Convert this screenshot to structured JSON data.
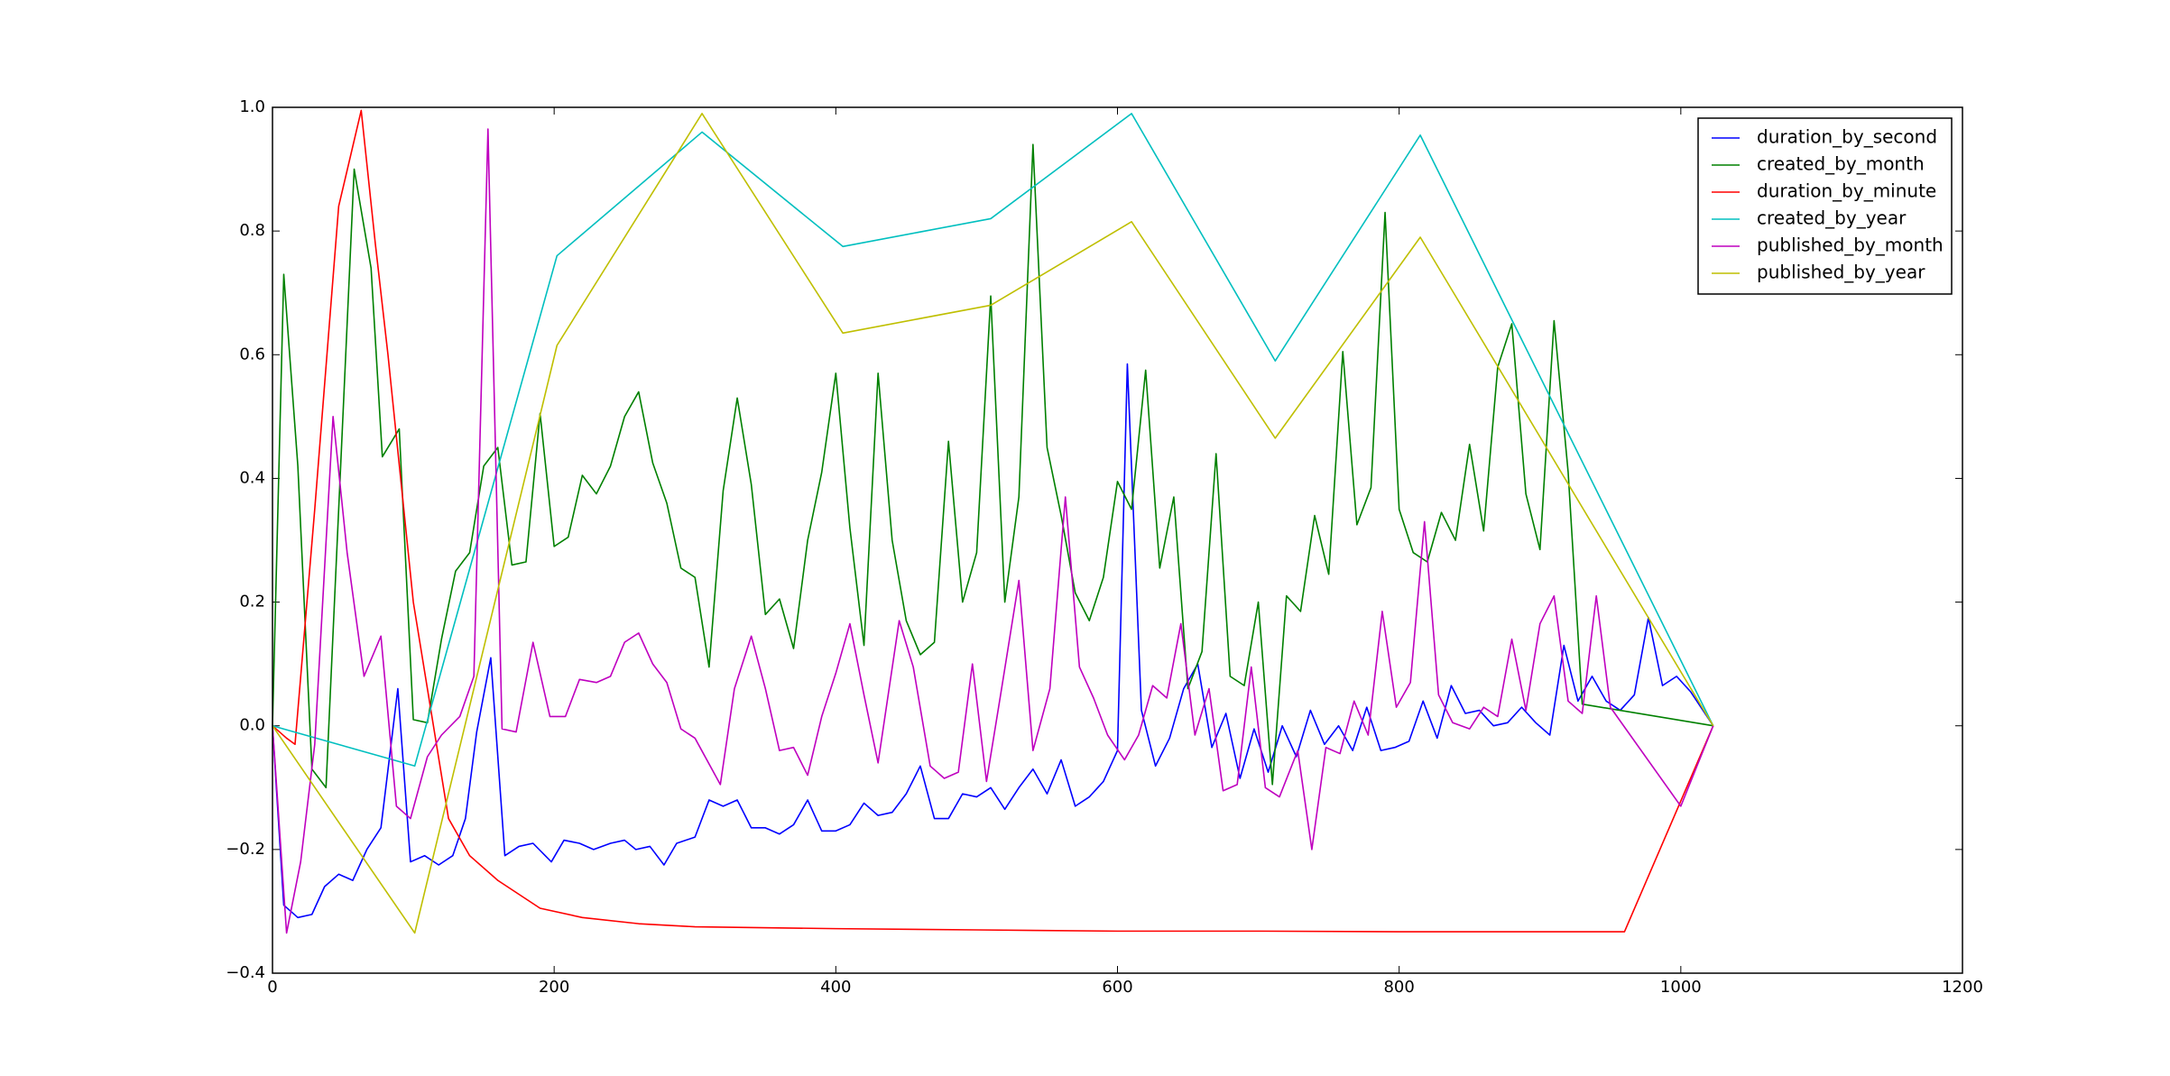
{
  "chart_data": {
    "type": "line",
    "xlim": [
      0,
      1200
    ],
    "xticks": [
      0,
      200,
      400,
      600,
      800,
      1000,
      1200
    ],
    "ylim": [
      -0.4,
      1.0
    ],
    "yticks": [
      {
        "value": -0.4,
        "label": "−0.4"
      },
      {
        "value": -0.2,
        "label": "−0.2"
      },
      {
        "value": 0,
        "label": "0.0"
      },
      {
        "value": 0.2,
        "label": "0.2"
      },
      {
        "value": 0.4,
        "label": "0.4"
      },
      {
        "value": 0.6,
        "label": "0.6"
      },
      {
        "value": 0.8,
        "label": "0.8"
      },
      {
        "value": 1.0,
        "label": "1.0"
      }
    ],
    "legend": "upper right",
    "series": [
      {
        "name": "duration_by_second",
        "color": "#0000ff",
        "x": [
          0,
          8,
          18,
          28,
          37,
          47,
          57,
          67,
          77,
          89,
          98,
          108,
          118,
          128,
          137,
          145,
          155,
          165,
          175,
          185,
          198,
          207,
          218,
          228,
          240,
          250,
          258,
          268,
          278,
          287,
          300,
          310,
          320,
          330,
          340,
          350,
          360,
          370,
          380,
          390,
          400,
          410,
          420,
          430,
          440,
          450,
          460,
          470,
          480,
          490,
          500,
          510,
          520,
          530,
          540,
          550,
          560,
          570,
          580,
          590,
          600,
          607,
          617,
          627,
          637,
          647,
          657,
          667,
          677,
          687,
          697,
          707,
          717,
          727,
          737,
          747,
          757,
          767,
          777,
          787,
          797,
          807,
          817,
          827,
          837,
          847,
          857,
          867,
          877,
          887,
          897,
          907,
          917,
          927,
          937,
          947,
          957,
          967,
          977,
          987,
          997,
          1007,
          1023
        ],
        "values": [
          0,
          -0.29,
          -0.31,
          -0.305,
          -0.26,
          -0.24,
          -0.25,
          -0.2,
          -0.165,
          0.06,
          -0.22,
          -0.21,
          -0.225,
          -0.21,
          -0.15,
          -0.01,
          0.11,
          -0.21,
          -0.195,
          -0.19,
          -0.22,
          -0.185,
          -0.19,
          -0.2,
          -0.19,
          -0.185,
          -0.2,
          -0.195,
          -0.225,
          -0.19,
          -0.18,
          -0.12,
          -0.13,
          -0.12,
          -0.165,
          -0.165,
          -0.175,
          -0.16,
          -0.12,
          -0.17,
          -0.17,
          -0.16,
          -0.125,
          -0.145,
          -0.14,
          -0.11,
          -0.065,
          -0.15,
          -0.15,
          -0.11,
          -0.115,
          -0.1,
          -0.135,
          -0.1,
          -0.07,
          -0.11,
          -0.055,
          -0.13,
          -0.115,
          -0.09,
          -0.04,
          0.585,
          0.025,
          -0.065,
          -0.02,
          0.06,
          0.1,
          -0.035,
          0.02,
          -0.085,
          -0.005,
          -0.075,
          0,
          -0.05,
          0.025,
          -0.03,
          0,
          -0.04,
          0.03,
          -0.04,
          -0.035,
          -0.025,
          0.04,
          -0.02,
          0.065,
          0.02,
          0.025,
          0,
          0.005,
          0.03,
          0.005,
          -0.015,
          0.13,
          0.04,
          0.08,
          0.04,
          0.025,
          0.05,
          0.175,
          0.065,
          0.08,
          0.055,
          0
        ]
      },
      {
        "name": "created_by_month",
        "color": "#008000",
        "x": [
          0,
          8,
          18,
          28,
          38,
          48,
          58,
          70,
          78,
          90,
          100,
          110,
          120,
          130,
          140,
          150,
          160,
          170,
          180,
          190,
          200,
          210,
          220,
          230,
          240,
          250,
          260,
          270,
          280,
          290,
          300,
          310,
          320,
          330,
          340,
          350,
          360,
          370,
          380,
          390,
          400,
          410,
          420,
          430,
          440,
          450,
          460,
          470,
          480,
          490,
          500,
          510,
          520,
          530,
          540,
          550,
          560,
          570,
          580,
          590,
          600,
          610,
          620,
          630,
          640,
          650,
          660,
          670,
          680,
          690,
          700,
          710,
          720,
          730,
          740,
          750,
          760,
          770,
          780,
          790,
          800,
          810,
          820,
          830,
          840,
          850,
          860,
          870,
          880,
          890,
          900,
          910,
          920,
          930,
          1023
        ],
        "values": [
          0,
          0.73,
          0.42,
          -0.07,
          -0.1,
          0.4,
          0.9,
          0.74,
          0.435,
          0.48,
          0.01,
          0.005,
          0.14,
          0.25,
          0.28,
          0.42,
          0.45,
          0.26,
          0.265,
          0.505,
          0.29,
          0.305,
          0.405,
          0.375,
          0.42,
          0.5,
          0.54,
          0.425,
          0.36,
          0.255,
          0.24,
          0.095,
          0.38,
          0.53,
          0.39,
          0.18,
          0.205,
          0.125,
          0.3,
          0.41,
          0.57,
          0.32,
          0.13,
          0.57,
          0.3,
          0.17,
          0.115,
          0.135,
          0.46,
          0.2,
          0.28,
          0.695,
          0.2,
          0.37,
          0.94,
          0.45,
          0.34,
          0.215,
          0.17,
          0.24,
          0.395,
          0.35,
          0.575,
          0.255,
          0.37,
          0.06,
          0.12,
          0.44,
          0.08,
          0.065,
          0.2,
          -0.095,
          0.21,
          0.185,
          0.34,
          0.245,
          0.605,
          0.325,
          0.385,
          0.83,
          0.35,
          0.28,
          0.265,
          0.345,
          0.3,
          0.455,
          0.315,
          0.58,
          0.65,
          0.375,
          0.285,
          0.655,
          0.41,
          0.035,
          0
        ]
      },
      {
        "name": "duration_by_minute",
        "color": "#ff0000",
        "x": [
          0,
          10,
          16,
          30,
          47,
          63,
          73,
          82,
          100,
          125,
          140,
          160,
          190,
          220,
          260,
          300,
          400,
          500,
          600,
          700,
          800,
          900,
          960,
          1023
        ],
        "values": [
          0,
          -0.02,
          -0.03,
          0.35,
          0.84,
          0.995,
          0.78,
          0.6,
          0.2,
          -0.15,
          -0.21,
          -0.25,
          -0.295,
          -0.31,
          -0.32,
          -0.325,
          -0.328,
          -0.33,
          -0.332,
          -0.332,
          -0.333,
          -0.333,
          -0.333,
          0
        ]
      },
      {
        "name": "created_by_year",
        "color": "#00bfbf",
        "x": [
          0,
          101,
          202,
          305,
          405,
          510,
          610,
          712,
          815,
          1023
        ],
        "values": [
          0,
          -0.065,
          0.76,
          0.96,
          0.775,
          0.82,
          0.99,
          0.59,
          0.955,
          0
        ]
      },
      {
        "name": "published_by_month",
        "color": "#bf00bf",
        "x": [
          0,
          10,
          20,
          30,
          43,
          53,
          65,
          77,
          88,
          98,
          110,
          120,
          133,
          143,
          153,
          163,
          173,
          185,
          197,
          208,
          218,
          230,
          240,
          250,
          260,
          270,
          280,
          290,
          300,
          318,
          328,
          340,
          350,
          360,
          370,
          380,
          390,
          400,
          410,
          420,
          430,
          445,
          455,
          467,
          477,
          487,
          497,
          507,
          517,
          530,
          540,
          552,
          563,
          573,
          583,
          593,
          605,
          615,
          625,
          635,
          645,
          655,
          665,
          675,
          685,
          695,
          705,
          715,
          728,
          738,
          748,
          758,
          768,
          778,
          788,
          798,
          808,
          818,
          828,
          838,
          850,
          860,
          870,
          880,
          890,
          900,
          910,
          920,
          930,
          940,
          950,
          1000,
          1023
        ],
        "values": [
          0,
          -0.335,
          -0.22,
          -0.03,
          0.5,
          0.28,
          0.08,
          0.145,
          -0.13,
          -0.15,
          -0.05,
          -0.015,
          0.015,
          0.08,
          0.965,
          -0.005,
          -0.01,
          0.135,
          0.015,
          0.015,
          0.075,
          0.07,
          0.08,
          0.135,
          0.15,
          0.1,
          0.07,
          -0.005,
          -0.02,
          -0.095,
          0.06,
          0.145,
          0.06,
          -0.04,
          -0.035,
          -0.08,
          0.015,
          0.085,
          0.165,
          0.05,
          -0.06,
          0.17,
          0.095,
          -0.065,
          -0.085,
          -0.075,
          0.1,
          -0.09,
          0.05,
          0.235,
          -0.04,
          0.06,
          0.37,
          0.095,
          0.045,
          -0.015,
          -0.055,
          -0.015,
          0.065,
          0.045,
          0.165,
          -0.015,
          0.06,
          -0.105,
          -0.095,
          0.095,
          -0.1,
          -0.115,
          -0.04,
          -0.2,
          -0.035,
          -0.045,
          0.04,
          -0.015,
          0.185,
          0.03,
          0.07,
          0.33,
          0.05,
          0.005,
          -0.005,
          0.03,
          0.015,
          0.14,
          0.025,
          0.165,
          0.21,
          0.04,
          0.02,
          0.21,
          0.03,
          -0.13,
          0
        ]
      },
      {
        "name": "published_by_year",
        "color": "#bfbf00",
        "x": [
          0,
          101,
          202,
          305,
          405,
          510,
          610,
          712,
          815,
          1023
        ],
        "values": [
          0,
          -0.335,
          0.615,
          0.99,
          0.635,
          0.68,
          0.815,
          0.465,
          0.79,
          0
        ]
      }
    ]
  }
}
